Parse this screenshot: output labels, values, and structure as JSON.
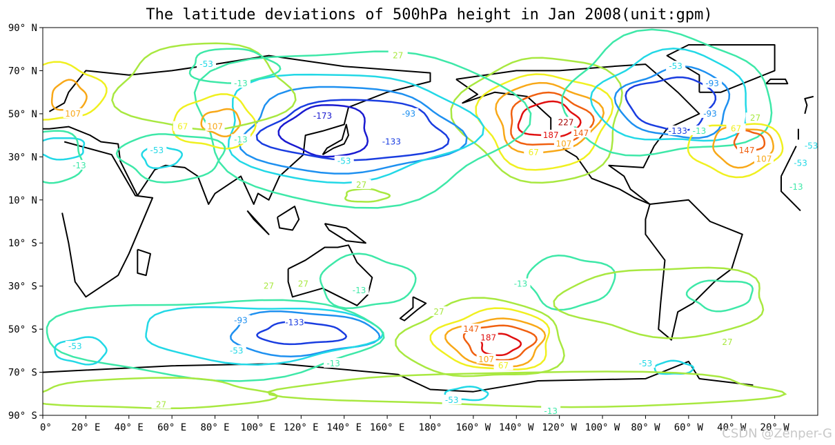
{
  "chart_data": {
    "type": "contour",
    "title": "The latitude deviations of 500hPa height in Jan 2008(unit:gpm)",
    "projection": "PlateCarree, central longitude 180",
    "xlim_lon_east": [
      0,
      360
    ],
    "ylim_lat": [
      -90,
      90
    ],
    "y_ticks": [
      {
        "lat": 90,
        "label": "90° N"
      },
      {
        "lat": 70,
        "label": "70° N"
      },
      {
        "lat": 50,
        "label": "50° N"
      },
      {
        "lat": 30,
        "label": "30° N"
      },
      {
        "lat": 10,
        "label": "10° N"
      },
      {
        "lat": -10,
        "label": "10° S"
      },
      {
        "lat": -30,
        "label": "30° S"
      },
      {
        "lat": -50,
        "label": "50° S"
      },
      {
        "lat": -70,
        "label": "70° S"
      },
      {
        "lat": -90,
        "label": "90° S"
      }
    ],
    "x_ticks": [
      {
        "lon": 0,
        "label": "0°"
      },
      {
        "lon": 20,
        "label": "20° E"
      },
      {
        "lon": 40,
        "label": "40° E"
      },
      {
        "lon": 60,
        "label": "60° E"
      },
      {
        "lon": 80,
        "label": "80° E"
      },
      {
        "lon": 100,
        "label": "100° E"
      },
      {
        "lon": 120,
        "label": "120° E"
      },
      {
        "lon": 140,
        "label": "140° E"
      },
      {
        "lon": 160,
        "label": "160° E"
      },
      {
        "lon": 180,
        "label": "180°"
      },
      {
        "lon": 200,
        "label": "160° W"
      },
      {
        "lon": 220,
        "label": "140° W"
      },
      {
        "lon": 240,
        "label": "120° W"
      },
      {
        "lon": 260,
        "label": "100° W"
      },
      {
        "lon": 280,
        "label": "80° W"
      },
      {
        "lon": 300,
        "label": "60° W"
      },
      {
        "lon": 320,
        "label": "40° W"
      },
      {
        "lon": 340,
        "label": "20° W"
      }
    ],
    "contour_levels": [
      -173,
      -133,
      -93,
      -53,
      -13,
      27,
      67,
      107,
      147,
      187,
      227
    ],
    "level_colors": {
      "-173": "#1a1ad0",
      "-133": "#1a3de0",
      "-93": "#1e90f0",
      "-53": "#22d8e6",
      "-13": "#3ee8a8",
      "27": "#a8e840",
      "67": "#f0f020",
      "107": "#f8a818",
      "147": "#f06010",
      "187": "#e01010",
      "227": "#a80000"
    },
    "contours": [
      {
        "level": 187,
        "lon": 235,
        "lat": 47,
        "rx": 14,
        "ry": 8
      },
      {
        "level": 147,
        "lon": 235,
        "lat": 47,
        "rx": 19,
        "ry": 12
      },
      {
        "level": 107,
        "lon": 234,
        "lat": 48,
        "rx": 24,
        "ry": 16
      },
      {
        "level": 67,
        "lon": 233,
        "lat": 47,
        "rx": 30,
        "ry": 22
      },
      {
        "level": 27,
        "lon": 232,
        "lat": 48,
        "rx": 38,
        "ry": 29
      },
      {
        "level": -173,
        "lon": 132,
        "lat": 42,
        "rx": 20,
        "ry": 12
      },
      {
        "level": -133,
        "lon": 145,
        "lat": 42,
        "rx": 42,
        "ry": 14
      },
      {
        "level": -93,
        "lon": 142,
        "lat": 42,
        "rx": 50,
        "ry": 20
      },
      {
        "level": -53,
        "lon": 140,
        "lat": 44,
        "rx": 58,
        "ry": 25
      },
      {
        "level": -13,
        "lon": 145,
        "lat": 45,
        "rx": 75,
        "ry": 36
      },
      {
        "level": -133,
        "lon": 292,
        "lat": 55,
        "rx": 20,
        "ry": 12
      },
      {
        "level": -93,
        "lon": 294,
        "lat": 55,
        "rx": 26,
        "ry": 16
      },
      {
        "level": -53,
        "lon": 293,
        "lat": 57,
        "rx": 36,
        "ry": 21
      },
      {
        "level": -13,
        "lon": 290,
        "lat": 58,
        "rx": 48,
        "ry": 28
      },
      {
        "level": 147,
        "lon": 328,
        "lat": 37,
        "rx": 7,
        "ry": 5
      },
      {
        "level": 107,
        "lon": 325,
        "lat": 35,
        "rx": 14,
        "ry": 9
      },
      {
        "level": 67,
        "lon": 322,
        "lat": 34,
        "rx": 22,
        "ry": 12
      },
      {
        "level": 107,
        "lon": 83,
        "lat": 46,
        "rx": 9,
        "ry": 6
      },
      {
        "level": 67,
        "lon": 80,
        "lat": 46,
        "rx": 19,
        "ry": 12
      },
      {
        "level": 107,
        "lon": 12,
        "lat": 58,
        "rx": 8,
        "ry": 7
      },
      {
        "level": 67,
        "lon": 8,
        "lat": 60,
        "rx": 20,
        "ry": 13
      },
      {
        "level": -53,
        "lon": 55,
        "lat": 30,
        "rx": 9,
        "ry": 5
      },
      {
        "level": -13,
        "lon": 60,
        "lat": 30,
        "rx": 24,
        "ry": 11
      },
      {
        "level": -53,
        "lon": 8,
        "lat": 34,
        "rx": 12,
        "ry": 5
      },
      {
        "level": -13,
        "lon": 3,
        "lat": 30,
        "rx": 16,
        "ry": 12
      },
      {
        "level": 27,
        "lon": 75,
        "lat": 62,
        "rx": 40,
        "ry": 20
      },
      {
        "level": -13,
        "lon": 88,
        "lat": 72,
        "rx": 20,
        "ry": 8
      },
      {
        "level": 187,
        "lon": 212,
        "lat": -57,
        "rx": 9,
        "ry": 5
      },
      {
        "level": 147,
        "lon": 212,
        "lat": -56,
        "rx": 16,
        "ry": 8
      },
      {
        "level": 107,
        "lon": 211,
        "lat": -56,
        "rx": 22,
        "ry": 11
      },
      {
        "level": 67,
        "lon": 210,
        "lat": -55,
        "rx": 27,
        "ry": 14
      },
      {
        "level": 27,
        "lon": 205,
        "lat": -55,
        "rx": 38,
        "ry": 18
      },
      {
        "level": -133,
        "lon": 120,
        "lat": -52,
        "rx": 20,
        "ry": 5
      },
      {
        "level": -93,
        "lon": 120,
        "lat": -52,
        "rx": 34,
        "ry": 10
      },
      {
        "level": -53,
        "lon": 100,
        "lat": -52,
        "rx": 55,
        "ry": 13
      },
      {
        "level": -13,
        "lon": 80,
        "lat": -54,
        "rx": 78,
        "ry": 18
      },
      {
        "level": -53,
        "lon": 18,
        "lat": -60,
        "rx": 12,
        "ry": 6
      },
      {
        "level": -53,
        "lon": 197,
        "lat": -80,
        "rx": 10,
        "ry": 3
      },
      {
        "level": -53,
        "lon": 293,
        "lat": -68,
        "rx": 9,
        "ry": 3
      },
      {
        "level": -13,
        "lon": 150,
        "lat": -28,
        "rx": 22,
        "ry": 12
      },
      {
        "level": -13,
        "lon": 245,
        "lat": -28,
        "rx": 20,
        "ry": 12
      },
      {
        "level": -13,
        "lon": 315,
        "lat": -34,
        "rx": 15,
        "ry": 7
      },
      {
        "level": 27,
        "lon": 290,
        "lat": -37,
        "rx": 48,
        "ry": 16
      },
      {
        "level": 27,
        "lon": 230,
        "lat": -78,
        "rx": 115,
        "ry": 8
      },
      {
        "level": 27,
        "lon": 50,
        "lat": -80,
        "rx": 55,
        "ry": 7
      },
      {
        "level": 27,
        "lon": 150,
        "lat": 12,
        "rx": 10,
        "ry": 3
      }
    ],
    "contour_labels": [
      {
        "text": "-173",
        "level": -173,
        "lon": 130,
        "lat": 49
      },
      {
        "text": "-133",
        "level": -133,
        "lon": 162,
        "lat": 37
      },
      {
        "text": "-93",
        "level": -93,
        "lon": 170,
        "lat": 50
      },
      {
        "text": "-53",
        "level": -53,
        "lon": 140,
        "lat": 28
      },
      {
        "text": "-13",
        "level": -13,
        "lon": 92,
        "lat": 38
      },
      {
        "text": "-13",
        "level": -13,
        "lon": 92,
        "lat": 64
      },
      {
        "text": "-53",
        "level": -53,
        "lon": 76,
        "lat": 73
      },
      {
        "text": "107",
        "level": 107,
        "lon": 80,
        "lat": 44
      },
      {
        "text": "67",
        "level": 67,
        "lon": 65,
        "lat": 44
      },
      {
        "text": "107",
        "level": 107,
        "lon": 14,
        "lat": 50
      },
      {
        "text": "-53",
        "level": -53,
        "lon": 53,
        "lat": 33
      },
      {
        "text": "-53",
        "level": -53,
        "lon": -3,
        "lat": 35
      },
      {
        "text": "-13",
        "level": -13,
        "lon": 17,
        "lat": 26
      },
      {
        "text": "27",
        "level": 27,
        "lon": 165,
        "lat": 77
      },
      {
        "text": "27",
        "level": 27,
        "lon": 148,
        "lat": 17
      },
      {
        "text": "187",
        "level": 187,
        "lon": 236,
        "lat": 40
      },
      {
        "text": "227",
        "level": 227,
        "lon": 243,
        "lat": 46
      },
      {
        "text": "147",
        "level": 147,
        "lon": 250,
        "lat": 41
      },
      {
        "text": "107",
        "level": 107,
        "lon": 242,
        "lat": 36
      },
      {
        "text": "67",
        "level": 67,
        "lon": 228,
        "lat": 32
      },
      {
        "text": "-53",
        "level": -53,
        "lon": 294,
        "lat": 72
      },
      {
        "text": "-93",
        "level": -93,
        "lon": 311,
        "lat": 64
      },
      {
        "text": "-93",
        "level": -93,
        "lon": 310,
        "lat": 50
      },
      {
        "text": "-133",
        "level": -133,
        "lon": 295,
        "lat": 42
      },
      {
        "text": "-13",
        "level": -13,
        "lon": 305,
        "lat": 42
      },
      {
        "text": "67",
        "level": 67,
        "lon": 322,
        "lat": 43
      },
      {
        "text": "27",
        "level": 27,
        "lon": 331,
        "lat": 48
      },
      {
        "text": "147",
        "level": 147,
        "lon": 327,
        "lat": 33
      },
      {
        "text": "107",
        "level": 107,
        "lon": 335,
        "lat": 29
      },
      {
        "text": "-53",
        "level": -53,
        "lon": 352,
        "lat": 27
      },
      {
        "text": "-13",
        "level": -13,
        "lon": 350,
        "lat": 16
      },
      {
        "text": "-93",
        "level": -93,
        "lon": 92,
        "lat": -46
      },
      {
        "text": "-133",
        "level": -133,
        "lon": 117,
        "lat": -47
      },
      {
        "text": "-53",
        "level": -53,
        "lon": 90,
        "lat": -60
      },
      {
        "text": "-53",
        "level": -53,
        "lon": 15,
        "lat": -58
      },
      {
        "text": "-13",
        "level": -13,
        "lon": 147,
        "lat": -32
      },
      {
        "text": "27",
        "level": 27,
        "lon": 105,
        "lat": -30
      },
      {
        "text": "27",
        "level": 27,
        "lon": 121,
        "lat": -29
      },
      {
        "text": "-13",
        "level": -13,
        "lon": 222,
        "lat": -29
      },
      {
        "text": "27",
        "level": 27,
        "lon": 184,
        "lat": -42
      },
      {
        "text": "147",
        "level": 147,
        "lon": 199,
        "lat": -50
      },
      {
        "text": "187",
        "level": 187,
        "lon": 207,
        "lat": -54
      },
      {
        "text": "107",
        "level": 107,
        "lon": 206,
        "lat": -64
      },
      {
        "text": "67",
        "level": 67,
        "lon": 214,
        "lat": -67
      },
      {
        "text": "-13",
        "level": -13,
        "lon": 135,
        "lat": -66
      },
      {
        "text": "-53",
        "level": -53,
        "lon": 280,
        "lat": -66
      },
      {
        "text": "27",
        "level": 27,
        "lon": 318,
        "lat": -56
      },
      {
        "text": "27",
        "level": 27,
        "lon": 55,
        "lat": -85
      },
      {
        "text": "-53",
        "level": -53,
        "lon": 190,
        "lat": -83
      },
      {
        "text": "-13",
        "level": -13,
        "lon": 236,
        "lat": -88
      }
    ],
    "grid": false,
    "legend": "none"
  },
  "watermark": "CSDN @Zenper-G"
}
